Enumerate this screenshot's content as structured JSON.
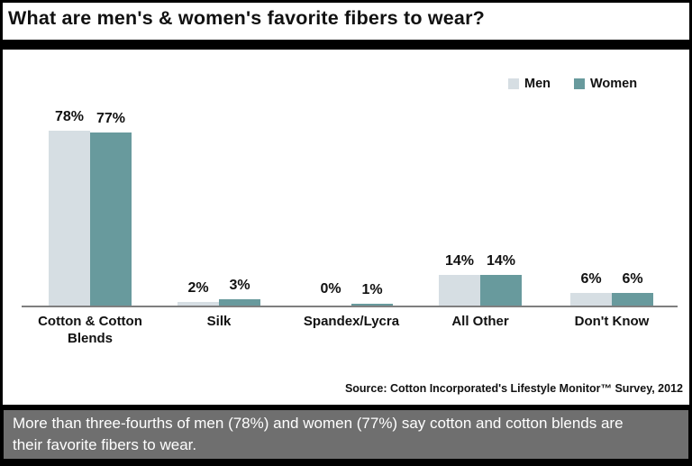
{
  "chart_data": {
    "type": "bar",
    "title": "What are men's & women's favorite fibers to wear?",
    "categories": [
      "Cotton & Cotton Blends",
      "Silk",
      "Spandex/Lycra",
      "All Other",
      "Don't Know"
    ],
    "series": [
      {
        "name": "Men",
        "color": "#d6dee3",
        "values": [
          78,
          2,
          0,
          14,
          6
        ],
        "value_labels": [
          "78%",
          "2%",
          "0%",
          "14%",
          "6%"
        ]
      },
      {
        "name": "Women",
        "color": "#689a9d",
        "values": [
          77,
          3,
          1,
          14,
          6
        ],
        "value_labels": [
          "77%",
          "3%",
          "1%",
          "14%",
          "6%"
        ]
      }
    ],
    "ylim": [
      0,
      100
    ],
    "grid": false,
    "y_axis_visible": false,
    "legend_position": "top-right",
    "annotations": []
  },
  "source_note": "Source: Cotton Incorporated's Lifestyle Monitor™ Survey, 2012",
  "caption": {
    "text": "More than three-fourths of men (78%) and women (77%) say cotton and cotton blends are their favorite fibers to wear."
  },
  "colors": {
    "men_bar": "#d6dee3",
    "women_bar": "#689a9d",
    "axis_line": "#7f7f7f",
    "caption_background": "#6f6f6f",
    "caption_text": "#ffffff",
    "text": "#111111",
    "frame": "#000000",
    "panel_background": "#ffffff"
  }
}
